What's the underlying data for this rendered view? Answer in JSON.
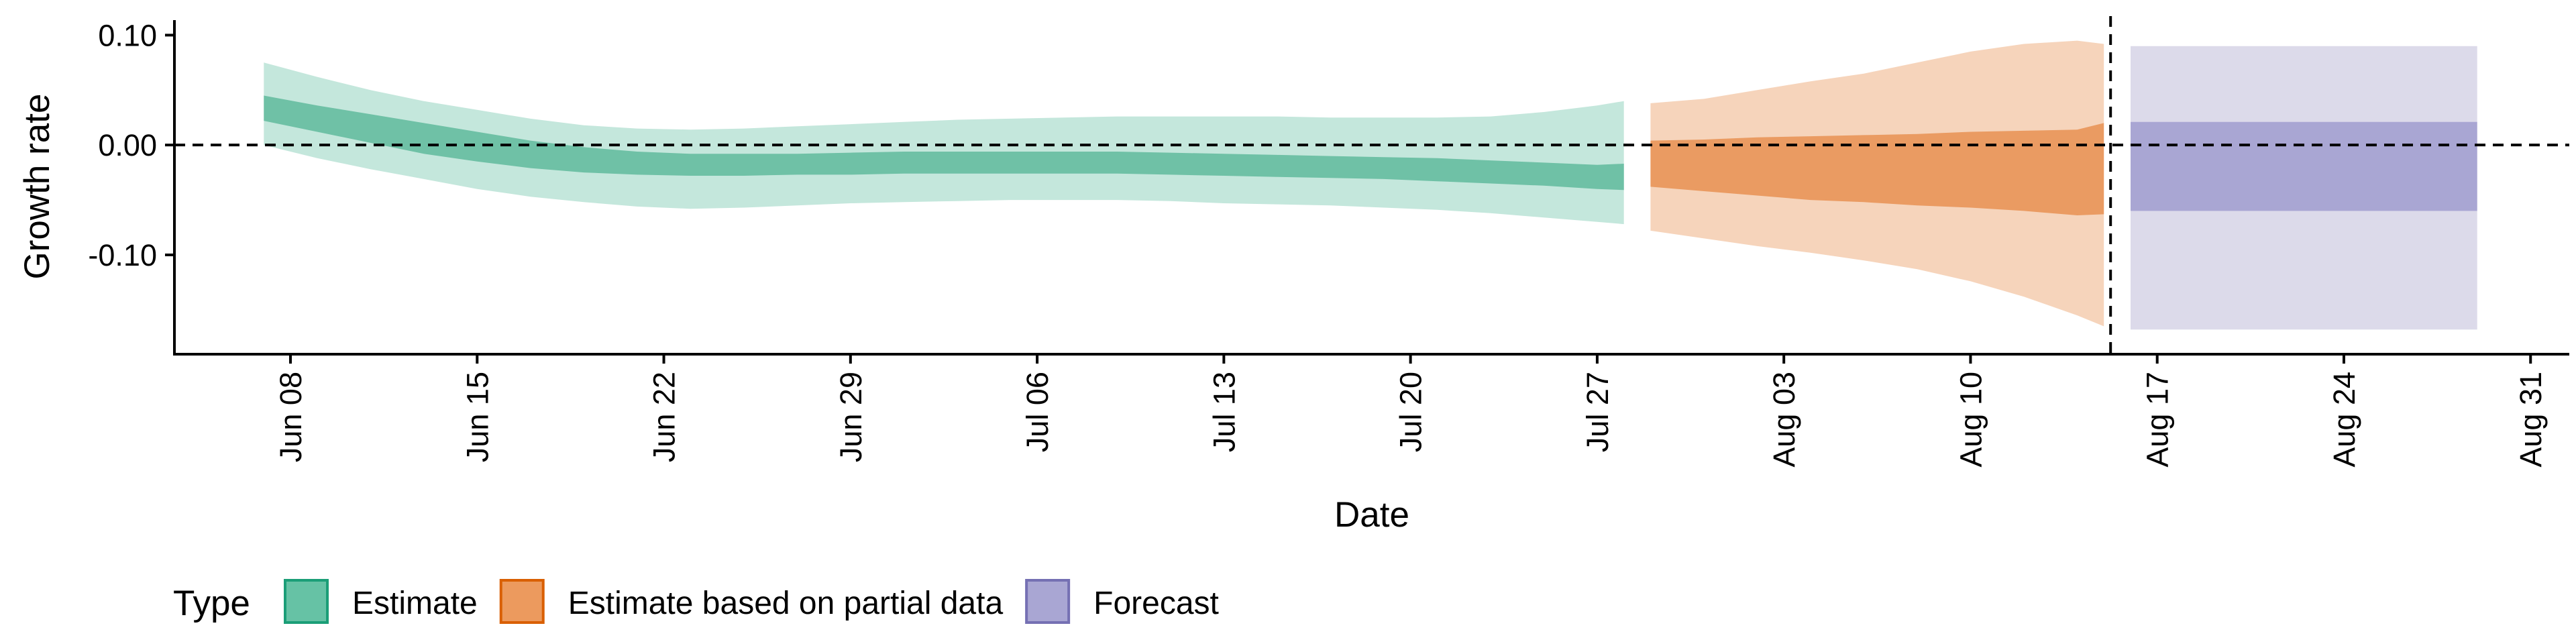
{
  "chart_data": {
    "type": "area",
    "xlabel": "Date",
    "ylabel": "Growth rate",
    "ylim": [
      -0.18,
      0.11
    ],
    "xlim": [
      "2020-06-04",
      "2020-09-01"
    ],
    "y_ticks": [
      0.1,
      0.0,
      -0.1
    ],
    "y_tick_labels": [
      "0.10",
      "0.00",
      "-0.10"
    ],
    "x_ticks": [
      "2020-06-08",
      "2020-06-15",
      "2020-06-22",
      "2020-06-29",
      "2020-07-06",
      "2020-07-13",
      "2020-07-20",
      "2020-07-27",
      "2020-08-03",
      "2020-08-10",
      "2020-08-17",
      "2020-08-24",
      "2020-08-31"
    ],
    "x_tick_labels": [
      "Jun 08",
      "Jun 15",
      "Jun 22",
      "Jun 29",
      "Jul 06",
      "Jul 13",
      "Jul 20",
      "Jul 27",
      "Aug 03",
      "Aug 10",
      "Aug 17",
      "Aug 24",
      "Aug 31"
    ],
    "reference_lines": {
      "horizontal_y": 0,
      "vertical_x": "2020-08-15",
      "style": "dashed"
    },
    "grid": false,
    "legend": {
      "title": "Type",
      "position": "bottom",
      "entries": [
        {
          "label": "Estimate",
          "fill": "#66c2a5",
          "border": "#1b9e77"
        },
        {
          "label": "Estimate based on partial data",
          "fill": "#ec9a5e",
          "border": "#d95f02"
        },
        {
          "label": "Forecast",
          "fill": "#a9a6d3",
          "border": "#7570b3"
        }
      ]
    },
    "series": [
      {
        "name": "Estimate",
        "outer_color": "#c4e7dc",
        "inner_color": "#6fc1a6",
        "x": [
          "2020-06-07",
          "2020-06-09",
          "2020-06-11",
          "2020-06-13",
          "2020-06-15",
          "2020-06-17",
          "2020-06-19",
          "2020-06-21",
          "2020-06-23",
          "2020-06-25",
          "2020-06-27",
          "2020-06-29",
          "2020-07-01",
          "2020-07-03",
          "2020-07-05",
          "2020-07-07",
          "2020-07-09",
          "2020-07-11",
          "2020-07-13",
          "2020-07-15",
          "2020-07-17",
          "2020-07-19",
          "2020-07-21",
          "2020-07-23",
          "2020-07-25",
          "2020-07-27",
          "2020-07-28"
        ],
        "lower90": [
          0.0,
          -0.012,
          -0.022,
          -0.031,
          -0.04,
          -0.047,
          -0.052,
          -0.056,
          -0.058,
          -0.057,
          -0.055,
          -0.053,
          -0.052,
          -0.051,
          -0.05,
          -0.05,
          -0.05,
          -0.051,
          -0.053,
          -0.054,
          -0.055,
          -0.057,
          -0.059,
          -0.062,
          -0.066,
          -0.07,
          -0.072
        ],
        "lower50": [
          0.022,
          0.012,
          0.002,
          -0.008,
          -0.015,
          -0.021,
          -0.025,
          -0.027,
          -0.028,
          -0.028,
          -0.027,
          -0.027,
          -0.026,
          -0.026,
          -0.026,
          -0.026,
          -0.026,
          -0.027,
          -0.028,
          -0.029,
          -0.03,
          -0.031,
          -0.033,
          -0.035,
          -0.037,
          -0.04,
          -0.041
        ],
        "upper50": [
          0.045,
          0.036,
          0.028,
          0.02,
          0.012,
          0.004,
          -0.002,
          -0.006,
          -0.008,
          -0.008,
          -0.008,
          -0.007,
          -0.006,
          -0.006,
          -0.006,
          -0.006,
          -0.006,
          -0.007,
          -0.008,
          -0.009,
          -0.01,
          -0.011,
          -0.012,
          -0.014,
          -0.016,
          -0.018,
          -0.017
        ],
        "upper90": [
          0.075,
          0.062,
          0.05,
          0.04,
          0.032,
          0.024,
          0.018,
          0.015,
          0.014,
          0.015,
          0.017,
          0.019,
          0.021,
          0.023,
          0.024,
          0.025,
          0.026,
          0.026,
          0.026,
          0.026,
          0.025,
          0.025,
          0.025,
          0.026,
          0.03,
          0.036,
          0.04
        ]
      },
      {
        "name": "Estimate based on partial data",
        "outer_color": "#f6d4bb",
        "inner_color": "#ea9b62",
        "x": [
          "2020-07-29",
          "2020-07-31",
          "2020-08-02",
          "2020-08-04",
          "2020-08-06",
          "2020-08-08",
          "2020-08-10",
          "2020-08-12",
          "2020-08-14",
          "2020-08-15"
        ],
        "lower90": [
          -0.078,
          -0.085,
          -0.092,
          -0.098,
          -0.105,
          -0.113,
          -0.124,
          -0.138,
          -0.155,
          -0.165
        ],
        "lower50": [
          -0.038,
          -0.042,
          -0.046,
          -0.05,
          -0.052,
          -0.055,
          -0.057,
          -0.06,
          -0.064,
          -0.063
        ],
        "upper50": [
          0.004,
          0.005,
          0.007,
          0.008,
          0.009,
          0.01,
          0.012,
          0.013,
          0.014,
          0.02
        ],
        "upper90": [
          0.038,
          0.042,
          0.05,
          0.058,
          0.065,
          0.075,
          0.085,
          0.092,
          0.095,
          0.092
        ]
      },
      {
        "name": "Forecast",
        "outer_color": "#dcdaea",
        "inner_color": "#a9a6d3",
        "x": [
          "2020-08-16",
          "2020-08-29"
        ],
        "lower90": [
          -0.168,
          -0.168
        ],
        "lower50": [
          -0.06,
          -0.06
        ],
        "upper50": [
          0.021,
          0.021
        ],
        "upper90": [
          0.09,
          0.09
        ]
      }
    ]
  }
}
